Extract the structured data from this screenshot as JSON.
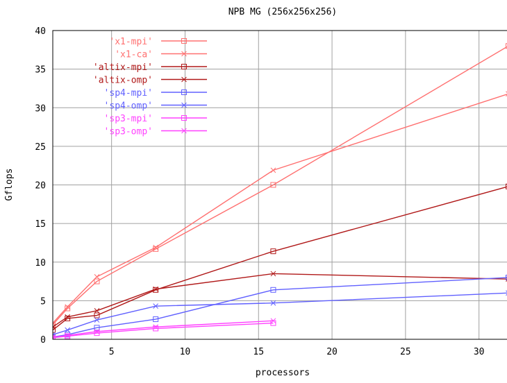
{
  "chart_data": {
    "type": "line",
    "title": "NPB MG (256x256x256)",
    "xlabel": "processors",
    "ylabel": "Gflops",
    "xlim": [
      1,
      32
    ],
    "ylim": [
      0,
      40
    ],
    "xticks": [
      5,
      10,
      15,
      20,
      25,
      30
    ],
    "yticks": [
      0,
      5,
      10,
      15,
      20,
      25,
      30,
      35,
      40
    ],
    "grid": true,
    "legend_position": "top-left",
    "series": [
      {
        "name": "'x1-mpi'",
        "color": "#ff7070",
        "marker": "square",
        "x": [
          1,
          2,
          4,
          8,
          16,
          32
        ],
        "y": [
          1.9,
          4.0,
          7.5,
          11.7,
          20.0,
          38.0
        ]
      },
      {
        "name": "'x1-ca'",
        "color": "#ff7070",
        "marker": "x",
        "x": [
          1,
          2,
          4,
          8,
          16,
          32
        ],
        "y": [
          2.1,
          4.2,
          8.1,
          11.9,
          21.9,
          31.8
        ]
      },
      {
        "name": "'altix-mpi'",
        "color": "#b01818",
        "marker": "square",
        "x": [
          1,
          2,
          4,
          8,
          16,
          32
        ],
        "y": [
          1.2,
          2.7,
          3.1,
          6.4,
          11.4,
          19.8
        ]
      },
      {
        "name": "'altix-omp'",
        "color": "#b01818",
        "marker": "x",
        "x": [
          1,
          2,
          4,
          8,
          16,
          32
        ],
        "y": [
          1.6,
          2.9,
          3.7,
          6.5,
          8.5,
          7.8
        ]
      },
      {
        "name": "'sp4-mpi'",
        "color": "#6060ff",
        "marker": "square",
        "x": [
          1,
          2,
          4,
          8,
          16,
          32
        ],
        "y": [
          0.3,
          0.6,
          1.5,
          2.6,
          6.4,
          8.0
        ]
      },
      {
        "name": "'sp4-omp'",
        "color": "#6060ff",
        "marker": "x",
        "x": [
          1,
          2,
          4,
          8,
          16,
          32
        ],
        "y": [
          0.6,
          1.2,
          2.5,
          4.3,
          4.7,
          6.0
        ]
      },
      {
        "name": "'sp3-mpi'",
        "color": "#ff40ff",
        "marker": "square",
        "x": [
          1,
          2,
          4,
          8,
          16
        ],
        "y": [
          0.2,
          0.4,
          0.8,
          1.4,
          2.1
        ]
      },
      {
        "name": "'sp3-omp'",
        "color": "#ff40ff",
        "marker": "x",
        "x": [
          1,
          2,
          4,
          8,
          16
        ],
        "y": [
          0.25,
          0.5,
          1.0,
          1.6,
          2.4
        ]
      }
    ]
  }
}
